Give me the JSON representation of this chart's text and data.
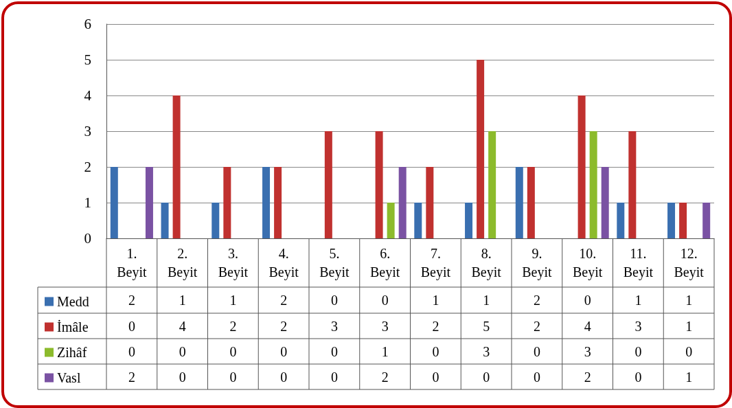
{
  "chart_data": {
    "type": "bar",
    "categories": [
      "1. Beyit",
      "2. Beyit",
      "3. Beyit",
      "4. Beyit",
      "5. Beyit",
      "6. Beyit",
      "7. Beyit",
      "8. Beyit",
      "9. Beyit",
      "10. Beyit",
      "11. Beyit",
      "12. Beyit"
    ],
    "series": [
      {
        "name": "Medd",
        "color": "#3a6fb0",
        "values": [
          2,
          1,
          1,
          2,
          0,
          0,
          1,
          1,
          2,
          0,
          1,
          1
        ]
      },
      {
        "name": "İmâle",
        "color": "#c0312f",
        "values": [
          0,
          4,
          2,
          2,
          3,
          3,
          2,
          5,
          2,
          4,
          3,
          1
        ]
      },
      {
        "name": "Zihâf",
        "color": "#8cbb2c",
        "values": [
          0,
          0,
          0,
          0,
          0,
          1,
          0,
          3,
          0,
          3,
          0,
          0
        ]
      },
      {
        "name": "Vasl",
        "color": "#7a52a3",
        "values": [
          2,
          0,
          0,
          0,
          0,
          2,
          0,
          0,
          0,
          2,
          0,
          1
        ]
      }
    ],
    "ylim": [
      0,
      6
    ],
    "yticks": [
      0,
      1,
      2,
      3,
      4,
      5,
      6
    ],
    "grid": "y",
    "legend": "bottom left",
    "data_labels": true
  }
}
